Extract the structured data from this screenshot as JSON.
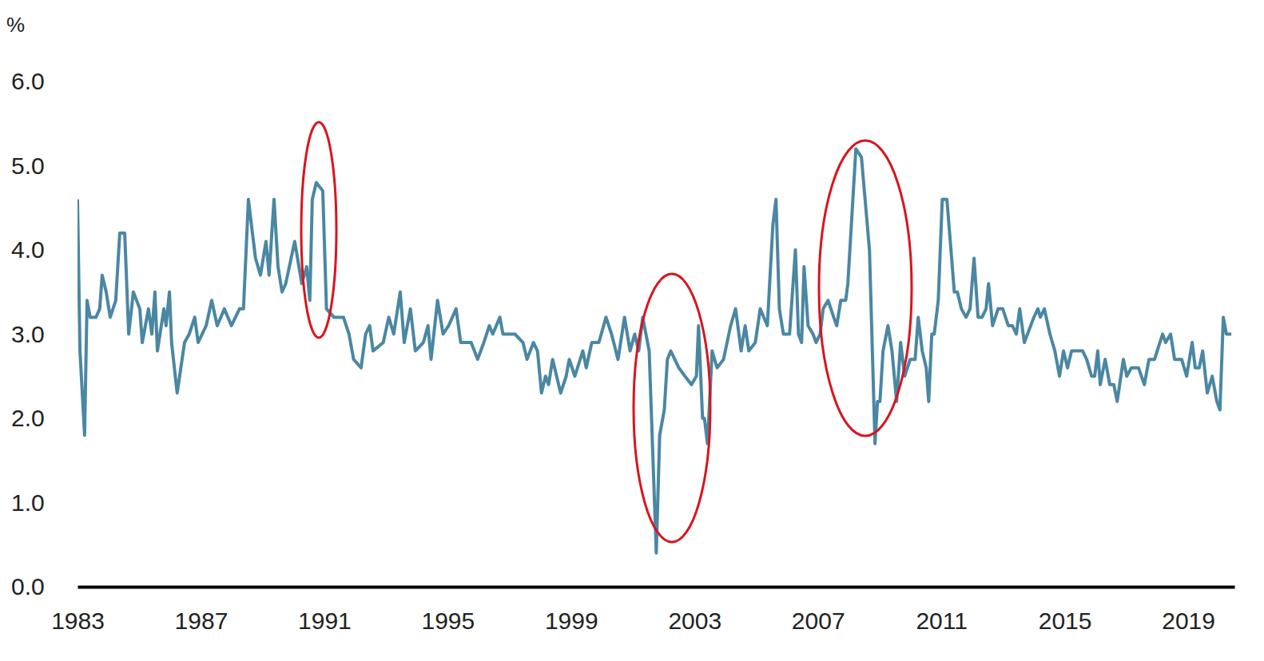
{
  "chart_data": {
    "type": "line",
    "ylabel": "%",
    "color": "#4a87a3",
    "grid": false,
    "xlim": [
      1983,
      2020.5
    ],
    "xticks": [
      1983,
      1987,
      1991,
      1995,
      1999,
      2003,
      2007,
      2011,
      2015,
      2019
    ],
    "ylim": [
      0,
      6
    ],
    "yticks": [
      {
        "value": 0,
        "label": "0.0"
      },
      {
        "value": 1,
        "label": "1.0"
      },
      {
        "value": 2,
        "label": "2.0"
      },
      {
        "value": 3,
        "label": "3.0"
      },
      {
        "value": 4,
        "label": "4.0"
      },
      {
        "value": 5,
        "label": "5.0"
      },
      {
        "value": 6,
        "label": "6.0"
      }
    ],
    "x": [
      1983.0,
      1983.08,
      1983.23,
      1983.31,
      1983.41,
      1983.6,
      1983.72,
      1983.8,
      1983.93,
      1984.06,
      1984.24,
      1984.37,
      1984.53,
      1984.66,
      1984.81,
      1985.02,
      1985.1,
      1985.3,
      1985.41,
      1985.51,
      1985.59,
      1985.8,
      1985.87,
      1985.98,
      1986.05,
      1986.23,
      1986.47,
      1986.62,
      1986.8,
      1986.91,
      1987.17,
      1987.35,
      1987.53,
      1987.76,
      1987.99,
      1988.25,
      1988.38,
      1988.54,
      1988.67,
      1988.77,
      1988.93,
      1989.11,
      1989.21,
      1989.37,
      1989.5,
      1989.63,
      1989.75,
      1990.04,
      1990.27,
      1990.43,
      1990.53,
      1990.61,
      1990.74,
      1990.95,
      1991.07,
      1991.31,
      1991.62,
      1991.8,
      1991.95,
      1992.19,
      1992.34,
      1992.47,
      1992.58,
      1992.91,
      1993.09,
      1993.25,
      1993.46,
      1993.59,
      1993.79,
      1993.95,
      1994.21,
      1994.36,
      1994.46,
      1994.67,
      1994.85,
      1995.03,
      1995.27,
      1995.42,
      1995.76,
      1995.97,
      1996.17,
      1996.35,
      1996.46,
      1996.69,
      1996.79,
      1997.18,
      1997.44,
      1997.57,
      1997.78,
      1997.91,
      1998.04,
      1998.17,
      1998.27,
      1998.4,
      1998.53,
      1998.66,
      1998.84,
      1998.94,
      1999.12,
      1999.38,
      1999.49,
      1999.67,
      1999.9,
      2000.13,
      2000.31,
      2000.52,
      2000.73,
      2000.91,
      2001.06,
      2001.19,
      2001.32,
      2001.53,
      2001.76,
      2001.87,
      2002.02,
      2002.12,
      2002.23,
      2002.49,
      2002.69,
      2002.9,
      2003.06,
      2003.13,
      2003.26,
      2003.32,
      2003.42,
      2003.57,
      2003.73,
      2003.94,
      2004.17,
      2004.33,
      2004.51,
      2004.64,
      2004.76,
      2004.97,
      2005.13,
      2005.36,
      2005.54,
      2005.64,
      2005.75,
      2005.88,
      2006.08,
      2006.27,
      2006.37,
      2006.47,
      2006.55,
      2006.68,
      2006.84,
      2006.94,
      2007.07,
      2007.17,
      2007.33,
      2007.51,
      2007.61,
      2007.74,
      2007.9,
      2007.97,
      2008.1,
      2008.23,
      2008.41,
      2008.67,
      2008.85,
      2008.93,
      2009.01,
      2009.11,
      2009.27,
      2009.4,
      2009.55,
      2009.68,
      2009.81,
      2009.99,
      2010.15,
      2010.25,
      2010.38,
      2010.51,
      2010.59,
      2010.69,
      2010.77,
      2010.9,
      2011.03,
      2011.18,
      2011.29,
      2011.42,
      2011.52,
      2011.65,
      2011.8,
      2011.93,
      2012.06,
      2012.19,
      2012.32,
      2012.45,
      2012.53,
      2012.66,
      2012.84,
      2012.99,
      2013.17,
      2013.3,
      2013.43,
      2013.54,
      2013.69,
      2014.0,
      2014.13,
      2014.21,
      2014.34,
      2014.52,
      2014.68,
      2014.83,
      2014.96,
      2015.09,
      2015.22,
      2015.58,
      2015.71,
      2015.87,
      2015.97,
      2016.07,
      2016.15,
      2016.31,
      2016.46,
      2016.59,
      2016.7,
      2016.9,
      2017.01,
      2017.16,
      2017.39,
      2017.58,
      2017.73,
      2017.91,
      2018.17,
      2018.27,
      2018.43,
      2018.56,
      2018.79,
      2018.95,
      2019.13,
      2019.23,
      2019.36,
      2019.47,
      2019.62,
      2019.78,
      2019.93,
      2020.03,
      2020.14,
      2020.24,
      2020.4
    ],
    "values": [
      4.6,
      2.8,
      1.8,
      3.4,
      3.2,
      3.2,
      3.3,
      3.7,
      3.5,
      3.2,
      3.4,
      4.2,
      4.2,
      3.0,
      3.5,
      3.3,
      2.9,
      3.3,
      3.0,
      3.5,
      2.8,
      3.3,
      3.1,
      3.5,
      2.9,
      2.3,
      2.9,
      3.0,
      3.2,
      2.9,
      3.1,
      3.4,
      3.1,
      3.3,
      3.1,
      3.3,
      3.3,
      4.6,
      4.2,
      3.9,
      3.7,
      4.1,
      3.7,
      4.6,
      3.8,
      3.5,
      3.6,
      4.1,
      3.6,
      3.8,
      3.4,
      4.6,
      4.8,
      4.7,
      3.3,
      3.2,
      3.2,
      3.0,
      2.7,
      2.6,
      3.0,
      3.1,
      2.8,
      2.9,
      3.2,
      3.0,
      3.5,
      2.9,
      3.3,
      2.8,
      2.9,
      3.1,
      2.7,
      3.4,
      3.0,
      3.1,
      3.3,
      2.9,
      2.9,
      2.7,
      2.9,
      3.1,
      3.0,
      3.2,
      3.0,
      3.0,
      2.9,
      2.7,
      2.9,
      2.8,
      2.3,
      2.5,
      2.4,
      2.7,
      2.5,
      2.3,
      2.5,
      2.7,
      2.5,
      2.8,
      2.6,
      2.9,
      2.9,
      3.2,
      3.0,
      2.7,
      3.2,
      2.8,
      3.0,
      2.8,
      3.2,
      2.8,
      0.4,
      1.8,
      2.1,
      2.7,
      2.8,
      2.6,
      2.5,
      2.4,
      2.5,
      3.1,
      2.0,
      2.0,
      1.7,
      2.8,
      2.6,
      2.7,
      3.1,
      3.3,
      2.8,
      3.1,
      2.8,
      2.9,
      3.3,
      3.1,
      4.3,
      4.6,
      3.3,
      3.0,
      3.0,
      4.0,
      3.0,
      2.9,
      3.8,
      3.1,
      3.0,
      2.9,
      3.0,
      3.3,
      3.4,
      3.2,
      3.1,
      3.4,
      3.4,
      3.6,
      4.4,
      5.2,
      5.1,
      4.0,
      1.7,
      2.2,
      2.2,
      2.8,
      3.1,
      2.8,
      2.2,
      2.9,
      2.5,
      2.7,
      2.7,
      3.2,
      2.8,
      2.6,
      2.2,
      3.0,
      3.0,
      3.4,
      4.6,
      4.6,
      4.1,
      3.5,
      3.5,
      3.3,
      3.2,
      3.3,
      3.9,
      3.2,
      3.2,
      3.3,
      3.6,
      3.1,
      3.3,
      3.3,
      3.1,
      3.1,
      3.0,
      3.3,
      2.9,
      3.2,
      3.3,
      3.2,
      3.3,
      3.0,
      2.8,
      2.5,
      2.8,
      2.6,
      2.8,
      2.8,
      2.7,
      2.5,
      2.5,
      2.8,
      2.4,
      2.7,
      2.4,
      2.4,
      2.2,
      2.7,
      2.5,
      2.6,
      2.6,
      2.4,
      2.7,
      2.7,
      3.0,
      2.9,
      3.0,
      2.7,
      2.7,
      2.5,
      2.9,
      2.6,
      2.6,
      2.8,
      2.3,
      2.5,
      2.2,
      2.1,
      3.2,
      3.0,
      3.0
    ]
  }
}
